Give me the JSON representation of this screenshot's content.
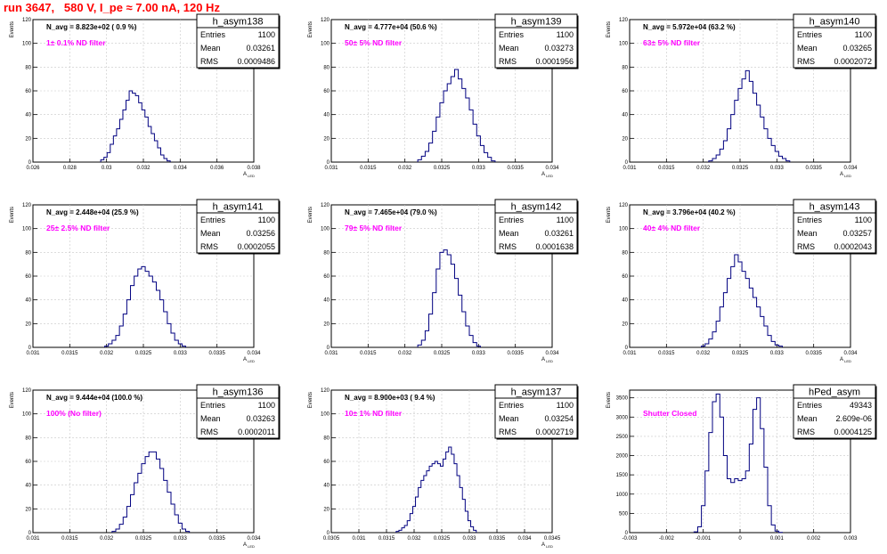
{
  "run_title": "run 3647,   580 V, I_pe ≈ 7.00 nA, 120 Hz",
  "stats_labels": {
    "entries": "Entries",
    "mean": "Mean",
    "rms": "RMS"
  },
  "colors": {
    "histogram": "#000080",
    "grid": "#c8c8c8",
    "title": "#ff0000",
    "annotation": "#ff00ff"
  },
  "chart_data": [
    {
      "type": "histogram",
      "name": "h_asym138",
      "entries": "1100",
      "mean": "0.03261",
      "rms": "0.0009486",
      "n_avg": "N_avg = 8.823e+02 ( 0.9 %)",
      "annotation": "1± 0.1% ND filter",
      "xlabel": "A_LED",
      "ylabel": "Events",
      "xlim": [
        0.026,
        0.04
      ],
      "ylim": [
        0,
        120
      ],
      "xticks": [
        "0.026",
        "0.028",
        "0.03",
        "0.032",
        "0.034",
        "0.036",
        "0.038"
      ],
      "yticks": [
        0,
        20,
        40,
        60,
        80,
        100,
        120
      ],
      "x": [
        0.0304,
        0.0306,
        0.0308,
        0.031,
        0.0312,
        0.0314,
        0.0316,
        0.0318,
        0.032,
        0.0322,
        0.0324,
        0.0326,
        0.0328,
        0.033,
        0.0332,
        0.0334,
        0.0336,
        0.0338,
        0.034,
        0.0342,
        0.0344,
        0.0346
      ],
      "values": [
        2,
        4,
        8,
        15,
        22,
        28,
        36,
        44,
        52,
        60,
        58,
        56,
        50,
        44,
        38,
        30,
        24,
        18,
        12,
        6,
        3,
        1
      ]
    },
    {
      "type": "histogram",
      "name": "h_asym139",
      "entries": "1100",
      "mean": "0.03273",
      "rms": "0.0001956",
      "n_avg": "N_avg = 4.777e+04 (50.6 %)",
      "annotation": "50± 5% ND filter",
      "xlabel": "A_LED",
      "ylabel": "Events",
      "xlim": [
        0.031,
        0.034
      ],
      "ylim": [
        0,
        120
      ],
      "xticks": [
        "0.031",
        "0.0315",
        "0.032",
        "0.0325",
        "0.033",
        "0.0335",
        "0.034"
      ],
      "yticks": [
        0,
        20,
        40,
        60,
        80,
        100,
        120
      ],
      "x": [
        0.0322,
        0.03225,
        0.0323,
        0.03235,
        0.0324,
        0.03245,
        0.0325,
        0.03255,
        0.0326,
        0.03265,
        0.0327,
        0.03275,
        0.0328,
        0.03285,
        0.0329,
        0.03295,
        0.033,
        0.03305,
        0.0331,
        0.03315,
        0.0332
      ],
      "values": [
        2,
        5,
        9,
        16,
        26,
        38,
        50,
        60,
        66,
        72,
        78,
        70,
        62,
        54,
        44,
        32,
        22,
        14,
        8,
        4,
        1
      ]
    },
    {
      "type": "histogram",
      "name": "h_asym140",
      "entries": "1100",
      "mean": "0.03265",
      "rms": "0.0002072",
      "n_avg": "N_avg = 5.972e+04 (63.2 %)",
      "annotation": "63± 5% ND filter",
      "xlabel": "A_LED",
      "ylabel": "Events",
      "xlim": [
        0.031,
        0.034
      ],
      "ylim": [
        0,
        120
      ],
      "xticks": [
        "0.031",
        "0.0315",
        "0.032",
        "0.0325",
        "0.033",
        "0.0335",
        "0.034"
      ],
      "yticks": [
        0,
        20,
        40,
        60,
        80,
        100,
        120
      ],
      "x": [
        0.0321,
        0.03215,
        0.0322,
        0.03225,
        0.0323,
        0.03235,
        0.0324,
        0.03245,
        0.0325,
        0.03255,
        0.0326,
        0.03265,
        0.0327,
        0.03275,
        0.0328,
        0.03285,
        0.0329,
        0.03295,
        0.033,
        0.03305,
        0.0331,
        0.03315
      ],
      "values": [
        1,
        3,
        6,
        11,
        18,
        28,
        40,
        52,
        62,
        70,
        77,
        68,
        58,
        48,
        38,
        28,
        20,
        14,
        9,
        5,
        3,
        1
      ]
    },
    {
      "type": "histogram",
      "name": "h_asym141",
      "entries": "1100",
      "mean": "0.03256",
      "rms": "0.0002055",
      "n_avg": "N_avg = 2.448e+04 (25.9 %)",
      "annotation": "25± 2.5% ND filter",
      "xlabel": "A_LED",
      "ylabel": "Events",
      "xlim": [
        0.031,
        0.034
      ],
      "ylim": [
        0,
        120
      ],
      "xticks": [
        "0.031",
        "0.0315",
        "0.032",
        "0.0325",
        "0.033",
        "0.0335",
        "0.034"
      ],
      "yticks": [
        0,
        20,
        40,
        60,
        80,
        100,
        120
      ],
      "x": [
        0.032,
        0.03205,
        0.0321,
        0.03215,
        0.0322,
        0.03225,
        0.0323,
        0.03235,
        0.0324,
        0.03245,
        0.0325,
        0.03255,
        0.0326,
        0.03265,
        0.0327,
        0.03275,
        0.0328,
        0.03285,
        0.0329,
        0.03295,
        0.033,
        0.03305
      ],
      "values": [
        1,
        3,
        6,
        10,
        18,
        28,
        40,
        52,
        60,
        66,
        68,
        64,
        60,
        55,
        48,
        40,
        30,
        20,
        12,
        6,
        3,
        1
      ]
    },
    {
      "type": "histogram",
      "name": "h_asym142",
      "entries": "1100",
      "mean": "0.03261",
      "rms": "0.0001638",
      "n_avg": "N_avg = 7.465e+04 (79.0 %)",
      "annotation": "79± 5% ND filter",
      "xlabel": "A_LED",
      "ylabel": "Events",
      "xlim": [
        0.031,
        0.034
      ],
      "ylim": [
        0,
        120
      ],
      "xticks": [
        "0.031",
        "0.0315",
        "0.032",
        "0.0325",
        "0.033",
        "0.0335",
        "0.034"
      ],
      "yticks": [
        0,
        20,
        40,
        60,
        80,
        100,
        120
      ],
      "x": [
        0.0322,
        0.03225,
        0.0323,
        0.03235,
        0.0324,
        0.03245,
        0.0325,
        0.03255,
        0.0326,
        0.03265,
        0.0327,
        0.03275,
        0.0328,
        0.03285,
        0.0329,
        0.03295,
        0.033
      ],
      "values": [
        2,
        6,
        14,
        28,
        46,
        66,
        80,
        82,
        78,
        70,
        58,
        44,
        30,
        18,
        10,
        4,
        1
      ]
    },
    {
      "type": "histogram",
      "name": "h_asym143",
      "entries": "1100",
      "mean": "0.03257",
      "rms": "0.0002043",
      "n_avg": "N_avg = 3.796e+04 (40.2 %)",
      "annotation": "40± 4% ND filter",
      "xlabel": "A_LED",
      "ylabel": "Events",
      "xlim": [
        0.031,
        0.034
      ],
      "ylim": [
        0,
        120
      ],
      "xticks": [
        "0.031",
        "0.0315",
        "0.032",
        "0.0325",
        "0.033",
        "0.0335",
        "0.034"
      ],
      "yticks": [
        0,
        20,
        40,
        60,
        80,
        100,
        120
      ],
      "x": [
        0.032,
        0.03205,
        0.0321,
        0.03215,
        0.0322,
        0.03225,
        0.0323,
        0.03235,
        0.0324,
        0.03245,
        0.0325,
        0.03255,
        0.0326,
        0.03265,
        0.0327,
        0.03275,
        0.0328,
        0.03285,
        0.0329,
        0.03295,
        0.033,
        0.03305
      ],
      "values": [
        1,
        3,
        7,
        13,
        22,
        34,
        46,
        58,
        68,
        78,
        72,
        64,
        58,
        50,
        42,
        34,
        26,
        18,
        10,
        5,
        2,
        1
      ]
    },
    {
      "type": "histogram",
      "name": "h_asym136",
      "entries": "1100",
      "mean": "0.03263",
      "rms": "0.0002011",
      "n_avg": "N_avg = 9.444e+04 (100.0 %)",
      "annotation": "100% (No filter)",
      "xlabel": "A_LED",
      "ylabel": "Events",
      "xlim": [
        0.031,
        0.034
      ],
      "ylim": [
        0,
        120
      ],
      "xticks": [
        "0.031",
        "0.0315",
        "0.032",
        "0.0325",
        "0.033",
        "0.0335",
        "0.034"
      ],
      "yticks": [
        0,
        20,
        40,
        60,
        80,
        100,
        120
      ],
      "x": [
        0.0321,
        0.03215,
        0.0322,
        0.03225,
        0.0323,
        0.03235,
        0.0324,
        0.03245,
        0.0325,
        0.03255,
        0.0326,
        0.03265,
        0.0327,
        0.03275,
        0.0328,
        0.03285,
        0.0329,
        0.03295,
        0.033,
        0.03305,
        0.0331
      ],
      "values": [
        1,
        3,
        7,
        13,
        22,
        32,
        42,
        50,
        58,
        64,
        68,
        68,
        62,
        54,
        44,
        34,
        24,
        15,
        8,
        3,
        1
      ]
    },
    {
      "type": "histogram",
      "name": "h_asym137",
      "entries": "1100",
      "mean": "0.03254",
      "rms": "0.0002719",
      "n_avg": "N_avg = 8.900e+03 ( 9.4 %)",
      "annotation": "10± 1% ND filter",
      "xlabel": "A_LED",
      "ylabel": "Events",
      "xlim": [
        0.0305,
        0.0345
      ],
      "ylim": [
        0,
        120
      ],
      "xticks": [
        "0.0305",
        "0.031",
        "0.0315",
        "0.032",
        "0.0325",
        "0.033",
        "0.0335",
        "0.034",
        "0.0345"
      ],
      "yticks": [
        0,
        20,
        40,
        60,
        80,
        100,
        120
      ],
      "x": [
        0.0317,
        0.03175,
        0.0318,
        0.03185,
        0.0319,
        0.03195,
        0.032,
        0.03205,
        0.0321,
        0.03215,
        0.0322,
        0.03225,
        0.0323,
        0.03235,
        0.0324,
        0.03245,
        0.0325,
        0.03255,
        0.0326,
        0.03265,
        0.0327,
        0.03275,
        0.0328,
        0.03285,
        0.0329,
        0.03295,
        0.033,
        0.03305,
        0.0331
      ],
      "values": [
        1,
        2,
        4,
        6,
        10,
        16,
        22,
        30,
        38,
        44,
        48,
        52,
        56,
        58,
        60,
        58,
        56,
        62,
        68,
        72,
        66,
        58,
        48,
        38,
        28,
        18,
        10,
        5,
        2
      ]
    },
    {
      "type": "histogram",
      "name": "hPed_asym",
      "entries": "49343",
      "mean": "2.609e-06",
      "rms": "0.0004125",
      "n_avg": "",
      "annotation": "Shutter Closed",
      "xlabel": "",
      "ylabel": "Events",
      "xlim": [
        -0.003,
        0.003
      ],
      "ylim": [
        0,
        3700
      ],
      "xticks": [
        "-0.003",
        "-0.002",
        "-0.001",
        "0",
        "0.001",
        "0.002",
        "0.003"
      ],
      "yticks": [
        0,
        500,
        1000,
        1500,
        2000,
        2500,
        3000,
        3500
      ],
      "x": [
        -0.0012,
        -0.0011,
        -0.001,
        -0.0009,
        -0.0008,
        -0.0007,
        -0.0006,
        -0.0005,
        -0.0004,
        -0.0003,
        -0.0002,
        -0.0001,
        0,
        0.0001,
        0.0002,
        0.0003,
        0.0004,
        0.0005,
        0.0006,
        0.0007,
        0.0008,
        0.0009,
        0.001,
        0.0011
      ],
      "values": [
        20,
        150,
        700,
        1600,
        2600,
        3400,
        3600,
        3000,
        2000,
        1400,
        1300,
        1400,
        1350,
        1400,
        1600,
        2300,
        3200,
        3500,
        2700,
        1700,
        700,
        200,
        40,
        5
      ]
    }
  ]
}
